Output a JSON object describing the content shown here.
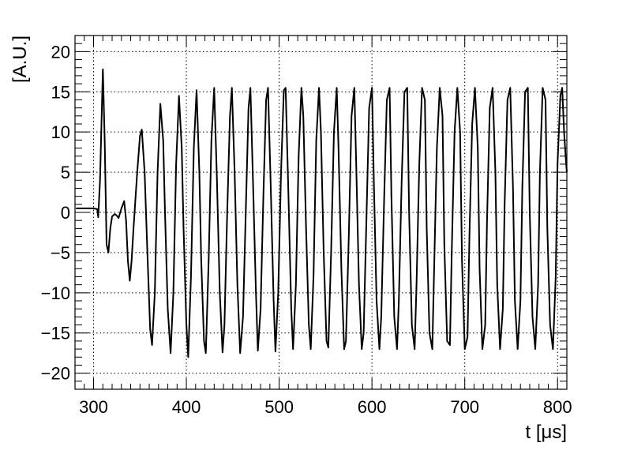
{
  "chart_data": {
    "type": "line",
    "title": "",
    "xlabel": "t [μs]",
    "ylabel": "[A.U.]",
    "xlim": [
      280,
      810
    ],
    "ylim": [
      -22,
      22
    ],
    "grid": true,
    "x_ticks": [
      300,
      400,
      500,
      600,
      700,
      800
    ],
    "y_ticks": [
      -20,
      -15,
      -10,
      -5,
      0,
      5,
      10,
      15,
      20
    ],
    "x_tick_labels": [
      "300",
      "400",
      "500",
      "600",
      "700",
      "800"
    ],
    "y_tick_labels": [
      "−20",
      "−15",
      "−10",
      "−5",
      "0",
      "5",
      "10",
      "15",
      "20"
    ],
    "series": [
      {
        "points": [
          [
            281,
            0.5
          ],
          [
            290,
            0.5
          ],
          [
            300,
            0.5
          ],
          [
            304,
            0.4
          ],
          [
            305,
            -0.6
          ],
          [
            307,
            4
          ],
          [
            310,
            17.8
          ],
          [
            312,
            9
          ],
          [
            314,
            -4
          ],
          [
            316,
            -5
          ],
          [
            318,
            -2
          ],
          [
            320,
            -0.5
          ],
          [
            323,
            -0.2
          ],
          [
            325,
            -0.4
          ],
          [
            327,
            -0.7
          ],
          [
            330,
            0.5
          ],
          [
            333,
            1.4
          ],
          [
            335,
            -1
          ],
          [
            337,
            -6
          ],
          [
            339,
            -8.5
          ],
          [
            341,
            -6
          ],
          [
            343,
            -2
          ],
          [
            347,
            5
          ],
          [
            350,
            9.5
          ],
          [
            352,
            10.3
          ],
          [
            355,
            5
          ],
          [
            358,
            -5
          ],
          [
            361,
            -14.5
          ],
          [
            363,
            -16.5
          ],
          [
            366,
            -10
          ],
          [
            369,
            5
          ],
          [
            372,
            13.5
          ],
          [
            375,
            9
          ],
          [
            377,
            0
          ],
          [
            380,
            -12
          ],
          [
            383,
            -17.5
          ],
          [
            386,
            -10
          ],
          [
            389,
            6
          ],
          [
            392,
            14.5
          ],
          [
            395,
            8
          ],
          [
            397,
            -2
          ],
          [
            400,
            -14
          ],
          [
            402,
            -18
          ],
          [
            405,
            -8
          ],
          [
            408,
            8
          ],
          [
            411,
            15.2
          ],
          [
            414,
            5
          ],
          [
            416,
            -6
          ],
          [
            419,
            -16
          ],
          [
            421,
            -17.5
          ],
          [
            424,
            -6
          ],
          [
            427,
            9
          ],
          [
            430,
            15.5
          ],
          [
            433,
            4
          ],
          [
            436,
            -10
          ],
          [
            439,
            -17.4
          ],
          [
            441,
            -14
          ],
          [
            444,
            0
          ],
          [
            447,
            12
          ],
          [
            449,
            15.5
          ],
          [
            452,
            5
          ],
          [
            455,
            -9
          ],
          [
            458,
            -17.5
          ],
          [
            461,
            -13
          ],
          [
            464,
            0
          ],
          [
            467,
            13
          ],
          [
            469,
            15.5
          ],
          [
            472,
            3
          ],
          [
            475,
            -10
          ],
          [
            477,
            -17.2
          ],
          [
            480,
            -12
          ],
          [
            483,
            2
          ],
          [
            486,
            14
          ],
          [
            488,
            15.5
          ],
          [
            491,
            3
          ],
          [
            494,
            -11
          ],
          [
            496,
            -17.3
          ],
          [
            499,
            -10
          ],
          [
            502,
            5
          ],
          [
            505,
            15.2
          ],
          [
            507,
            15.5
          ],
          [
            510,
            2
          ],
          [
            513,
            -12
          ],
          [
            515,
            -17
          ],
          [
            518,
            -9
          ],
          [
            521,
            7
          ],
          [
            524,
            15.5
          ],
          [
            526,
            12
          ],
          [
            529,
            -2
          ],
          [
            532,
            -14
          ],
          [
            534,
            -17
          ],
          [
            537,
            -8
          ],
          [
            540,
            9
          ],
          [
            543,
            15.5
          ],
          [
            545,
            10
          ],
          [
            548,
            -5
          ],
          [
            551,
            -16
          ],
          [
            553,
            -16.8
          ],
          [
            556,
            -5
          ],
          [
            559,
            10
          ],
          [
            562,
            15.5
          ],
          [
            564,
            8
          ],
          [
            567,
            -7
          ],
          [
            570,
            -17
          ],
          [
            572,
            -16
          ],
          [
            575,
            -3
          ],
          [
            578,
            12
          ],
          [
            581,
            15.5
          ],
          [
            583,
            6
          ],
          [
            586,
            -9
          ],
          [
            589,
            -17
          ],
          [
            591,
            -15
          ],
          [
            594,
            -1
          ],
          [
            597,
            13
          ],
          [
            600,
            15.5
          ],
          [
            602,
            4
          ],
          [
            605,
            -11
          ],
          [
            608,
            -17
          ],
          [
            610,
            -13
          ],
          [
            613,
            1
          ],
          [
            616,
            14
          ],
          [
            619,
            15.5
          ],
          [
            621,
            2
          ],
          [
            624,
            -13
          ],
          [
            627,
            -17
          ],
          [
            629,
            -11
          ],
          [
            632,
            4
          ],
          [
            635,
            15
          ],
          [
            638,
            15.5
          ],
          [
            640,
            0
          ],
          [
            643,
            -14
          ],
          [
            646,
            -17
          ],
          [
            648,
            -9
          ],
          [
            651,
            6
          ],
          [
            654,
            15.5
          ],
          [
            657,
            14
          ],
          [
            659,
            -2
          ],
          [
            662,
            -15
          ],
          [
            665,
            -17
          ],
          [
            667,
            -7
          ],
          [
            670,
            8
          ],
          [
            673,
            15.5
          ],
          [
            676,
            12
          ],
          [
            678,
            -4
          ],
          [
            681,
            -16
          ],
          [
            684,
            -16.5
          ],
          [
            686,
            -5
          ],
          [
            689,
            10
          ],
          [
            692,
            15.5
          ],
          [
            695,
            10
          ],
          [
            697,
            -6
          ],
          [
            700,
            -17
          ],
          [
            703,
            -15.5
          ],
          [
            705,
            -3
          ],
          [
            708,
            11
          ],
          [
            711,
            15.5
          ],
          [
            714,
            8
          ],
          [
            716,
            -7
          ],
          [
            719,
            -17
          ],
          [
            722,
            -14
          ],
          [
            724,
            -1
          ],
          [
            727,
            13
          ],
          [
            730,
            15.5
          ],
          [
            733,
            5
          ],
          [
            735,
            -9
          ],
          [
            738,
            -17
          ],
          [
            741,
            -12
          ],
          [
            743,
            1
          ],
          [
            746,
            14
          ],
          [
            749,
            15.5
          ],
          [
            752,
            3
          ],
          [
            754,
            -11
          ],
          [
            757,
            -17
          ],
          [
            760,
            -11
          ],
          [
            762,
            3
          ],
          [
            765,
            15
          ],
          [
            768,
            15.5
          ],
          [
            770,
            0
          ],
          [
            773,
            -13
          ],
          [
            776,
            -17
          ],
          [
            779,
            -9
          ],
          [
            781,
            5
          ],
          [
            784,
            15.5
          ],
          [
            787,
            14
          ],
          [
            789,
            -2
          ],
          [
            792,
            -14
          ],
          [
            795,
            -17
          ],
          [
            798,
            -8
          ],
          [
            800,
            6
          ],
          [
            803,
            14.5
          ],
          [
            805,
            15.5
          ],
          [
            807,
            10
          ],
          [
            809,
            6.5
          ],
          [
            810,
            5
          ]
        ]
      }
    ]
  }
}
